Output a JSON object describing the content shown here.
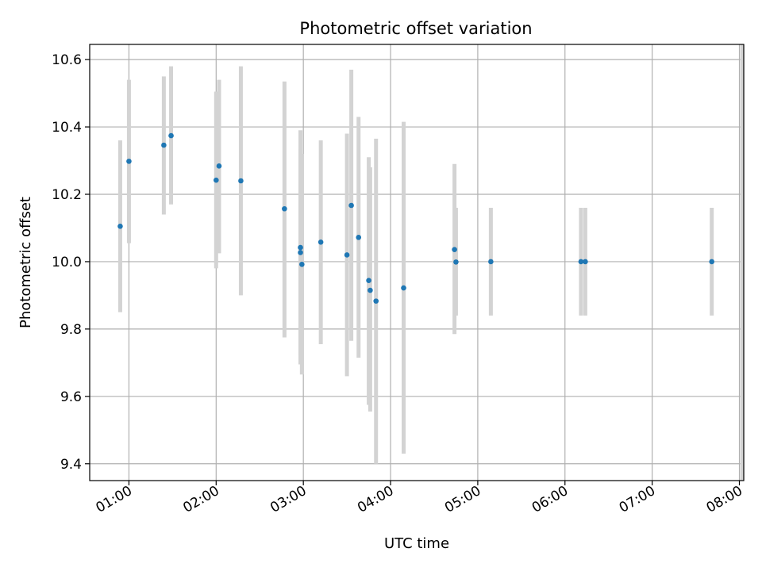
{
  "chart_data": {
    "type": "scatter",
    "title": "Photometric offset variation",
    "xlabel": "UTC time",
    "ylabel": "Photometric offset",
    "x_ticks": [
      "01:00",
      "02:00",
      "03:00",
      "04:00",
      "05:00",
      "06:00",
      "07:00",
      "08:00"
    ],
    "y_ticks": [
      "9.4",
      "9.6",
      "9.8",
      "10.0",
      "10.2",
      "10.4",
      "10.6"
    ],
    "xlim": [
      "00:33",
      "08:03"
    ],
    "ylim": [
      9.35,
      10.645
    ],
    "grid": true,
    "marker_color": "#1f77b4",
    "errorbar_color": "#d3d3d3",
    "points": [
      {
        "x": "00:54",
        "y": 10.105,
        "yerr_low": 9.85,
        "yerr_high": 10.36
      },
      {
        "x": "01:00",
        "y": 10.298,
        "yerr_low": 10.055,
        "yerr_high": 10.54
      },
      {
        "x": "01:24",
        "y": 10.346,
        "yerr_low": 10.14,
        "yerr_high": 10.55
      },
      {
        "x": "01:29",
        "y": 10.374,
        "yerr_low": 10.17,
        "yerr_high": 10.58
      },
      {
        "x": "02:00",
        "y": 10.242,
        "yerr_low": 9.98,
        "yerr_high": 10.505
      },
      {
        "x": "02:02",
        "y": 10.284,
        "yerr_low": 10.025,
        "yerr_high": 10.54
      },
      {
        "x": "02:17",
        "y": 10.24,
        "yerr_low": 9.9,
        "yerr_high": 10.58
      },
      {
        "x": "02:47",
        "y": 10.157,
        "yerr_low": 9.775,
        "yerr_high": 10.535
      },
      {
        "x": "02:58",
        "y": 10.027,
        "yerr_low": 9.72,
        "yerr_high": 10.335
      },
      {
        "x": "02:58",
        "y": 10.042,
        "yerr_low": 9.695,
        "yerr_high": 10.39
      },
      {
        "x": "02:59",
        "y": 9.992,
        "yerr_low": 9.665,
        "yerr_high": 10.32
      },
      {
        "x": "03:12",
        "y": 10.058,
        "yerr_low": 9.755,
        "yerr_high": 10.36
      },
      {
        "x": "03:30",
        "y": 10.02,
        "yerr_low": 9.66,
        "yerr_high": 10.38
      },
      {
        "x": "03:33",
        "y": 10.167,
        "yerr_low": 9.765,
        "yerr_high": 10.57
      },
      {
        "x": "03:38",
        "y": 10.072,
        "yerr_low": 9.715,
        "yerr_high": 10.43
      },
      {
        "x": "03:45",
        "y": 9.944,
        "yerr_low": 9.575,
        "yerr_high": 10.31
      },
      {
        "x": "03:46",
        "y": 9.915,
        "yerr_low": 9.555,
        "yerr_high": 10.28
      },
      {
        "x": "03:50",
        "y": 9.883,
        "yerr_low": 9.4,
        "yerr_high": 10.365
      },
      {
        "x": "04:09",
        "y": 9.922,
        "yerr_low": 9.43,
        "yerr_high": 10.415
      },
      {
        "x": "04:44",
        "y": 10.036,
        "yerr_low": 9.785,
        "yerr_high": 10.29
      },
      {
        "x": "04:45",
        "y": 9.999,
        "yerr_low": 9.84,
        "yerr_high": 10.16
      },
      {
        "x": "05:09",
        "y": 10.0,
        "yerr_low": 9.84,
        "yerr_high": 10.16
      },
      {
        "x": "06:11",
        "y": 10.0,
        "yerr_low": 9.84,
        "yerr_high": 10.16
      },
      {
        "x": "06:14",
        "y": 10.0,
        "yerr_low": 9.84,
        "yerr_high": 10.16
      },
      {
        "x": "07:41",
        "y": 10.0,
        "yerr_low": 9.84,
        "yerr_high": 10.16
      },
      {
        "x": "08:02",
        "y": 10.65,
        "yerr_low": 9.35,
        "yerr_high": 10.65
      }
    ]
  }
}
